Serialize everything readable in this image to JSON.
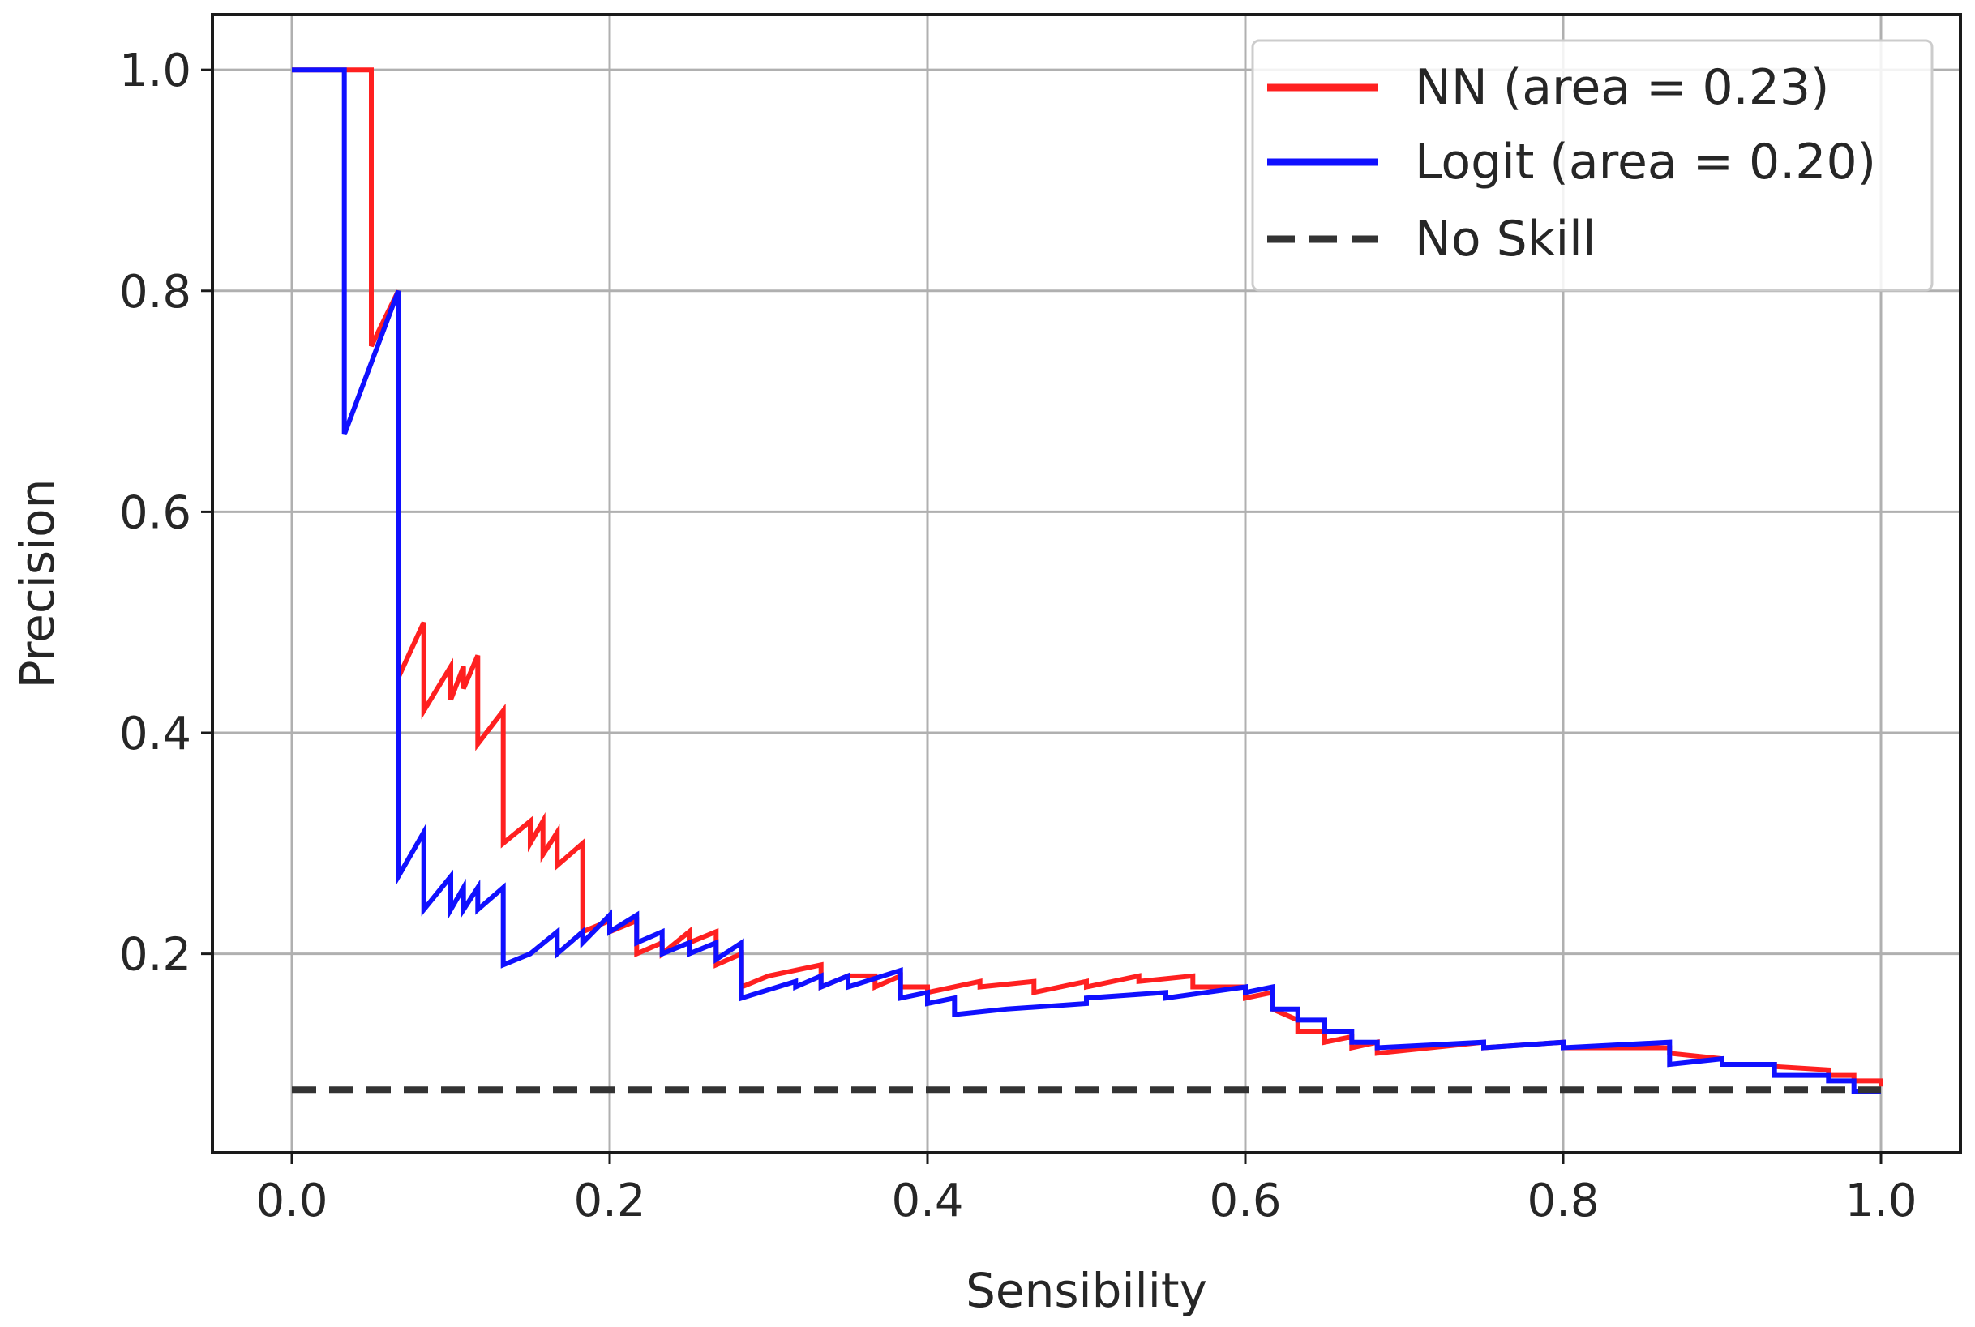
{
  "chart_data": {
    "type": "line",
    "title": "",
    "xlabel": "Sensibility",
    "ylabel": "Precision",
    "xlim": [
      -0.05,
      1.05
    ],
    "ylim": [
      0.02,
      1.05
    ],
    "xticks": [
      0.0,
      0.2,
      0.4,
      0.6,
      0.8,
      1.0
    ],
    "yticks": [
      0.2,
      0.4,
      0.6,
      0.8,
      1.0
    ],
    "xtick_labels": [
      "0.0",
      "0.2",
      "0.4",
      "0.6",
      "0.8",
      "1.0"
    ],
    "ytick_labels": [
      "0.2",
      "0.4",
      "0.6",
      "0.8",
      "1.0"
    ],
    "grid": true,
    "legend_position": "top-right",
    "series": [
      {
        "name": "NN (area = 0.23)",
        "color": "#ff2020",
        "style": "solid",
        "x": [
          0.0,
          0.05,
          0.05,
          0.05,
          0.067,
          0.067,
          0.067,
          0.083,
          0.083,
          0.1,
          0.1,
          0.108,
          0.108,
          0.117,
          0.117,
          0.133,
          0.133,
          0.15,
          0.15,
          0.158,
          0.158,
          0.167,
          0.167,
          0.183,
          0.183,
          0.2,
          0.2,
          0.217,
          0.217,
          0.233,
          0.233,
          0.25,
          0.25,
          0.267,
          0.267,
          0.283,
          0.283,
          0.3,
          0.3,
          0.333,
          0.333,
          0.35,
          0.35,
          0.367,
          0.367,
          0.383,
          0.383,
          0.4,
          0.4,
          0.433,
          0.433,
          0.467,
          0.467,
          0.5,
          0.5,
          0.533,
          0.533,
          0.567,
          0.567,
          0.6,
          0.6,
          0.617,
          0.617,
          0.633,
          0.633,
          0.65,
          0.65,
          0.667,
          0.667,
          0.683,
          0.683,
          0.75,
          0.75,
          0.8,
          0.8,
          0.867,
          0.867,
          0.9,
          0.9,
          0.933,
          0.933,
          0.967,
          0.967,
          0.983,
          0.983,
          1.0,
          1.0
        ],
        "y": [
          1.0,
          1.0,
          0.8,
          0.75,
          0.8,
          0.8,
          0.45,
          0.5,
          0.42,
          0.46,
          0.43,
          0.46,
          0.44,
          0.47,
          0.39,
          0.42,
          0.3,
          0.32,
          0.3,
          0.32,
          0.29,
          0.31,
          0.28,
          0.3,
          0.22,
          0.23,
          0.22,
          0.23,
          0.2,
          0.21,
          0.2,
          0.22,
          0.21,
          0.22,
          0.19,
          0.2,
          0.17,
          0.18,
          0.18,
          0.19,
          0.17,
          0.18,
          0.18,
          0.18,
          0.17,
          0.18,
          0.17,
          0.17,
          0.165,
          0.175,
          0.17,
          0.175,
          0.165,
          0.175,
          0.17,
          0.18,
          0.175,
          0.18,
          0.17,
          0.17,
          0.16,
          0.165,
          0.15,
          0.14,
          0.13,
          0.13,
          0.12,
          0.125,
          0.115,
          0.12,
          0.11,
          0.12,
          0.115,
          0.12,
          0.115,
          0.115,
          0.11,
          0.105,
          0.1,
          0.1,
          0.098,
          0.095,
          0.09,
          0.09,
          0.085,
          0.085,
          0.08
        ]
      },
      {
        "name": "Logit (area = 0.20)",
        "color": "#1010ff",
        "style": "solid",
        "x": [
          0.0,
          0.033,
          0.033,
          0.067,
          0.067,
          0.067,
          0.083,
          0.083,
          0.1,
          0.1,
          0.108,
          0.108,
          0.117,
          0.117,
          0.133,
          0.133,
          0.15,
          0.15,
          0.167,
          0.167,
          0.183,
          0.183,
          0.2,
          0.2,
          0.217,
          0.217,
          0.233,
          0.233,
          0.25,
          0.25,
          0.267,
          0.267,
          0.283,
          0.283,
          0.317,
          0.317,
          0.333,
          0.333,
          0.35,
          0.35,
          0.383,
          0.383,
          0.4,
          0.4,
          0.417,
          0.417,
          0.45,
          0.45,
          0.5,
          0.5,
          0.55,
          0.55,
          0.6,
          0.6,
          0.617,
          0.617,
          0.633,
          0.633,
          0.65,
          0.65,
          0.667,
          0.667,
          0.683,
          0.683,
          0.75,
          0.75,
          0.8,
          0.8,
          0.867,
          0.867,
          0.9,
          0.9,
          0.933,
          0.933,
          0.967,
          0.967,
          0.983,
          0.983,
          1.0
        ],
        "y": [
          1.0,
          1.0,
          0.67,
          0.8,
          0.27,
          0.27,
          0.31,
          0.24,
          0.27,
          0.24,
          0.26,
          0.24,
          0.26,
          0.24,
          0.26,
          0.19,
          0.2,
          0.2,
          0.22,
          0.2,
          0.22,
          0.21,
          0.235,
          0.22,
          0.235,
          0.21,
          0.22,
          0.2,
          0.21,
          0.2,
          0.21,
          0.195,
          0.21,
          0.16,
          0.175,
          0.17,
          0.18,
          0.17,
          0.18,
          0.17,
          0.185,
          0.16,
          0.165,
          0.155,
          0.16,
          0.145,
          0.15,
          0.15,
          0.155,
          0.16,
          0.165,
          0.16,
          0.17,
          0.165,
          0.17,
          0.15,
          0.15,
          0.14,
          0.14,
          0.13,
          0.13,
          0.12,
          0.12,
          0.115,
          0.12,
          0.115,
          0.12,
          0.115,
          0.12,
          0.1,
          0.105,
          0.1,
          0.1,
          0.09,
          0.09,
          0.085,
          0.085,
          0.075,
          0.075
        ]
      },
      {
        "name": "No Skill",
        "color": "#333333",
        "style": "dashed",
        "x": [
          0.0,
          1.0
        ],
        "y": [
          0.077,
          0.077
        ]
      }
    ]
  }
}
